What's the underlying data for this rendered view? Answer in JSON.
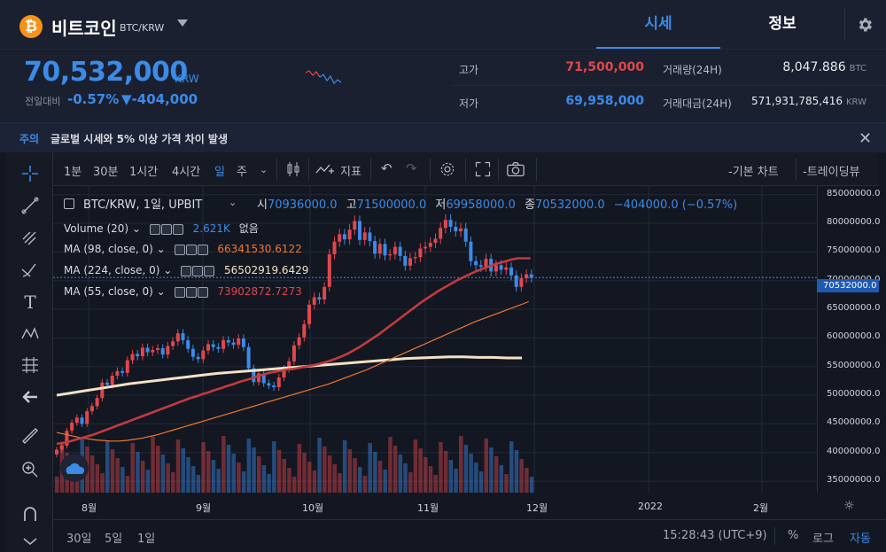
{
  "header": {
    "coin_symbol_glyph": "₿",
    "coin_name": "비트코인",
    "pair": "BTC/KRW",
    "tabs": [
      "시세",
      "정보"
    ]
  },
  "ticker": {
    "price": "70,532,000",
    "unit": "KRW",
    "prev_label": "전일대비",
    "change_pct": "-0.57%",
    "change_amt": "▼-404,000",
    "high_label": "고가",
    "high": "71,500,000",
    "low_label": "저가",
    "low": "69,958,000",
    "vol_label": "거래량(24H)",
    "vol": "8,047.886",
    "vol_unit": "BTC",
    "amt_label": "거래대금(24H)",
    "amt": "571,931,785,416",
    "amt_unit": "KRW"
  },
  "notice": {
    "tag": "주의",
    "text": "글로벌 시세와 5% 이상 가격 차이 발생"
  },
  "toolbar": {
    "intervals": [
      "1분",
      "30분",
      "1시간",
      "4시간",
      "일",
      "주"
    ],
    "active_interval": "일",
    "indicator_label": "지표",
    "basic_chart": "-기본 차트",
    "tradingview": "-트레이딩뷰"
  },
  "legend": {
    "title": "BTC/KRW, 1일, UPBIT",
    "open_label": "시",
    "open": "70936000.0",
    "high_label": "고",
    "high": "71500000.0",
    "low_label": "저",
    "low": "69958000.0",
    "close_label": "종",
    "close": "70532000.0",
    "change": "−404000.0 (−0.57%)"
  },
  "indicators": [
    {
      "name": "Volume (20)",
      "value": "2.621K",
      "extra": "없음",
      "color": "#3b8be8"
    },
    {
      "name": "MA (98, close, 0)",
      "value": "66341530.6122",
      "color": "#f0772f"
    },
    {
      "name": "MA (224, close, 0)",
      "value": "56502919.6429",
      "color": "#f3e2c4"
    },
    {
      "name": "MA (55, close, 0)",
      "value": "73902872.7273",
      "color": "#e0474c"
    }
  ],
  "chart_data": {
    "type": "candlestick",
    "y_ticks": [
      "85000000.0",
      "80000000.0",
      "75000000.0",
      "70000000.0",
      "65000000.0",
      "60000000.0",
      "55000000.0",
      "50000000.0",
      "45000000.0",
      "40000000.0",
      "35000000.0"
    ],
    "last_price_label": "70532000.0",
    "ylim": [
      33000000,
      86500000
    ],
    "x_ticks": [
      "8월",
      "9월",
      "10월",
      "11월",
      "12월",
      "2022",
      "2월"
    ],
    "close_series": [
      40500000,
      41200000,
      43800000,
      45200000,
      46100000,
      45000000,
      47200000,
      48100000,
      49500000,
      52200000,
      51800000,
      53400000,
      54200000,
      53900000,
      56100000,
      57200000,
      56800000,
      58300000,
      57500000,
      57900000,
      58200000,
      57100000,
      58600000,
      59400000,
      60800000,
      59600000,
      58100000,
      56700000,
      56300000,
      57800000,
      58900000,
      58400000,
      58100000,
      59600000,
      59200000,
      58800000,
      59900000,
      58400000,
      54700000,
      52300000,
      53800000,
      52100000,
      51700000,
      51400000,
      53100000,
      54600000,
      55900000,
      58700000,
      60100000,
      62400000,
      65800000,
      67100000,
      66700000,
      68900000,
      74600000,
      76800000,
      78100000,
      77200000,
      78900000,
      80400000,
      77100000,
      78400000,
      76900000,
      74700000,
      76400000,
      74400000,
      74600000,
      75900000,
      74300000,
      72600000,
      73900000,
      74100000,
      75600000,
      75900000,
      76600000,
      77300000,
      79200000,
      80600000,
      79400000,
      78600000,
      79100000,
      76800000,
      73400000,
      72700000,
      72400000,
      73800000,
      71600000,
      72700000,
      71900000,
      72300000,
      70900000,
      68900000,
      70400000,
      71100000,
      70532000
    ],
    "ma55": [
      41500000,
      41700000,
      41900000,
      42200000,
      42500000,
      42800000,
      43100000,
      43500000,
      43900000,
      44300000,
      44700000,
      45100000,
      45500000,
      45900000,
      46300000,
      46700000,
      47100000,
      47500000,
      47900000,
      48300000,
      48700000,
      49100000,
      49500000,
      49800000,
      50200000,
      50500000,
      50900000,
      51200000,
      51600000,
      51900000,
      52300000,
      52600000,
      52900000,
      53300000,
      53600000,
      53900000,
      54100000,
      54300000,
      54500000,
      54600000,
      54800000,
      55000000,
      55200000,
      55400000,
      55700000,
      56000000,
      56400000,
      56800000,
      57300000,
      57900000,
      58500000,
      59200000,
      59900000,
      60600000,
      61400000,
      62200000,
      63000000,
      63800000,
      64600000,
      65400000,
      66200000,
      66900000,
      67600000,
      68300000,
      68900000,
      69500000,
      70100000,
      70600000,
      71100000,
      71600000,
      72000000,
      72400000,
      72800000,
      73100000,
      73400000,
      73700000,
      73900000,
      73900000,
      73900000
    ],
    "ma98": [
      43500000,
      43200000,
      42900000,
      42600000,
      42400000,
      42200000,
      42100000,
      42000000,
      42000000,
      42100000,
      42300000,
      42500000,
      42800000,
      43100000,
      43500000,
      43900000,
      44300000,
      44700000,
      45100000,
      45500000,
      45900000,
      46300000,
      46700000,
      47100000,
      47500000,
      47900000,
      48300000,
      48700000,
      49100000,
      49500000,
      49900000,
      50300000,
      50700000,
      51100000,
      51500000,
      51900000,
      52400000,
      52900000,
      53400000,
      53900000,
      54400000,
      55000000,
      55600000,
      56200000,
      56800000,
      57400000,
      58000000,
      58600000,
      59200000,
      59800000,
      60400000,
      61000000,
      61600000,
      62200000,
      62800000,
      63300000,
      63800000,
      64300000,
      64800000,
      65300000,
      65800000,
      66341530
    ],
    "ma224": [
      50000000,
      50400000,
      50800000,
      51200000,
      51600000,
      52000000,
      52300000,
      52600000,
      52900000,
      53200000,
      53500000,
      53800000,
      54000000,
      54200000,
      54400000,
      54600000,
      54800000,
      55000000,
      55200000,
      55400000,
      55600000,
      55800000,
      56000000,
      56200000,
      56400000,
      56500000,
      56600000,
      56700000,
      56700000,
      56600000,
      56600000,
      56500000,
      56500000
    ]
  },
  "bottom": {
    "ranges": [
      "30일",
      "5일",
      "1일"
    ],
    "clock": "15:28:43 (UTC+9)",
    "pct": "%",
    "log": "로그",
    "auto": "자동"
  }
}
